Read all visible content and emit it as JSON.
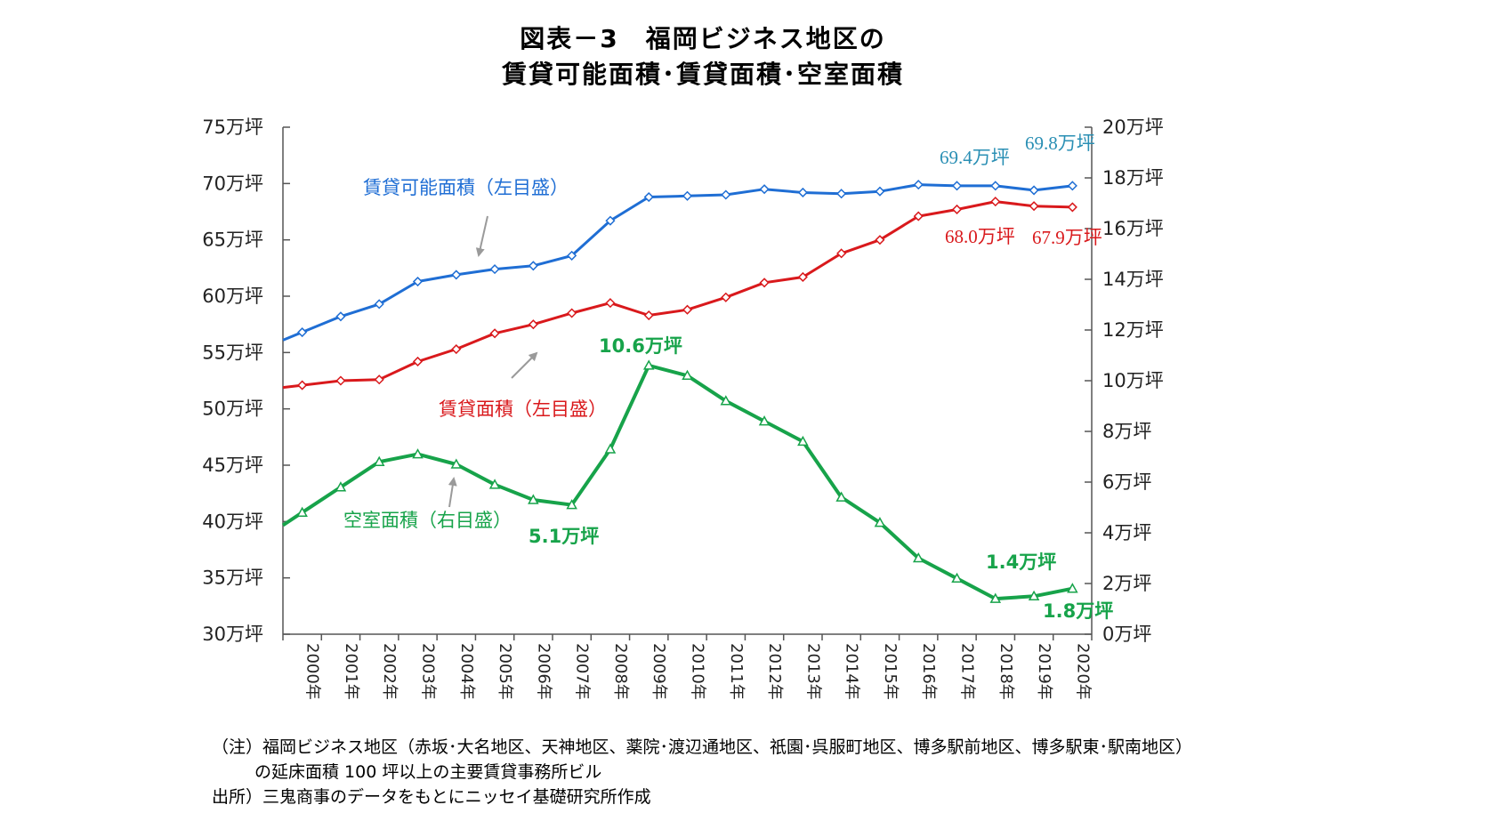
{
  "chart_data": {
    "type": "line",
    "title_line1": "図表－3　福岡ビジネス地区の",
    "title_line2": "賃貸可能面積･賃貸面積･空室面積",
    "categories": [
      "2000年",
      "2001年",
      "2002年",
      "2003年",
      "2004年",
      "2005年",
      "2006年",
      "2007年",
      "2008年",
      "2009年",
      "2010年",
      "2011年",
      "2012年",
      "2013年",
      "2014年",
      "2015年",
      "2016年",
      "2017年",
      "2018年",
      "2019年",
      "2020年"
    ],
    "left_axis": {
      "min": 30,
      "max": 75,
      "ticks": [
        "30万坪",
        "35万坪",
        "40万坪",
        "45万坪",
        "50万坪",
        "55万坪",
        "60万坪",
        "65万坪",
        "70万坪",
        "75万坪"
      ]
    },
    "right_axis": {
      "min": 0,
      "max": 20,
      "ticks": [
        "0万坪",
        "2万坪",
        "4万坪",
        "6万坪",
        "8万坪",
        "10万坪",
        "12万坪",
        "14万坪",
        "16万坪",
        "18万坪",
        "20万坪"
      ]
    },
    "series": [
      {
        "name": "賃貸可能面積（左目盛）",
        "axis": "left",
        "color": "#1f6ed4",
        "marker": "diamond",
        "values": [
          56.8,
          58.2,
          59.3,
          61.3,
          61.9,
          62.4,
          62.7,
          63.6,
          66.7,
          68.8,
          68.9,
          69.0,
          69.5,
          69.2,
          69.1,
          69.3,
          69.9,
          69.8,
          69.8,
          69.4,
          69.8
        ]
      },
      {
        "name": "賃貸面積（左目盛）",
        "axis": "left",
        "color": "#d9191c",
        "marker": "diamond",
        "values": [
          52.1,
          52.5,
          52.6,
          54.2,
          55.3,
          56.7,
          57.5,
          58.5,
          59.4,
          58.3,
          58.8,
          59.9,
          61.2,
          61.7,
          63.8,
          65.0,
          67.1,
          67.7,
          68.4,
          68.0,
          67.9
        ]
      },
      {
        "name": "空室面積（右目盛）",
        "axis": "right",
        "color": "#17a34a",
        "marker": "triangle",
        "values": [
          4.8,
          5.8,
          6.8,
          7.1,
          6.7,
          5.9,
          5.3,
          5.1,
          7.3,
          10.6,
          10.2,
          9.2,
          8.4,
          7.6,
          5.4,
          4.4,
          3.0,
          2.2,
          1.4,
          1.5,
          1.8
        ]
      }
    ],
    "series_labels": {
      "available": "賃貸可能面積（左目盛）",
      "leased": "賃貸面積（左目盛）",
      "vacant": "空室面積（右目盛）"
    },
    "annotations": {
      "available_2019": "69.4万坪",
      "available_2020": "69.8万坪",
      "leased_2019": "68.0万坪",
      "leased_2020": "67.9万坪",
      "vacant_2009": "10.6万坪",
      "vacant_2007": "5.1万坪",
      "vacant_2018": "1.4万坪",
      "vacant_2020": "1.8万坪"
    },
    "notes": {
      "line1": "（注）福岡ビジネス地区（赤坂･大名地区、天神地区、薬院･渡辺通地区、祇園･呉服町地区、博多駅前地区、博多駅東･駅南地区）",
      "line2": "の延床面積 100 坪以上の主要賃貸事務所ビル",
      "line3": "出所）三鬼商事のデータをもとにニッセイ基礎研究所作成"
    }
  }
}
